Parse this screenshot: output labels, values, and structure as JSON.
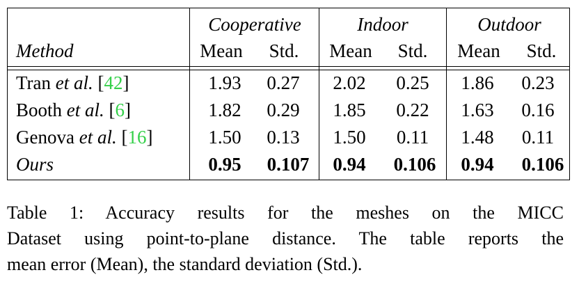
{
  "table": {
    "groups": [
      "Cooperative",
      "Indoor",
      "Outdoor"
    ],
    "method_header": "Method",
    "subheaders": [
      "Mean",
      "Std.",
      "Mean",
      "Std.",
      "Mean",
      "Std."
    ],
    "rows": [
      {
        "author": "Tran",
        "etal": "et al.",
        "cite": "42",
        "values": [
          "1.93",
          "0.27",
          "2.02",
          "0.25",
          "1.86",
          "0.23"
        ]
      },
      {
        "author": "Booth",
        "etal": "et al.",
        "cite": "6",
        "values": [
          "1.82",
          "0.29",
          "1.85",
          "0.22",
          "1.63",
          "0.16"
        ]
      },
      {
        "author": "Genova",
        "etal": "et al.",
        "cite": "16",
        "values": [
          "1.50",
          "0.13",
          "1.50",
          "0.11",
          "1.48",
          "0.11"
        ]
      },
      {
        "label": "Ours",
        "values": [
          "0.95",
          "0.107",
          "0.94",
          "0.106",
          "0.94",
          "0.106"
        ]
      }
    ]
  },
  "caption": {
    "lines": [
      "Table 1:  Accuracy results for the meshes on the MICC",
      "Dataset using point-to-plane distance. The table reports the",
      "mean error (Mean), the standard deviation (Std.)."
    ]
  }
}
